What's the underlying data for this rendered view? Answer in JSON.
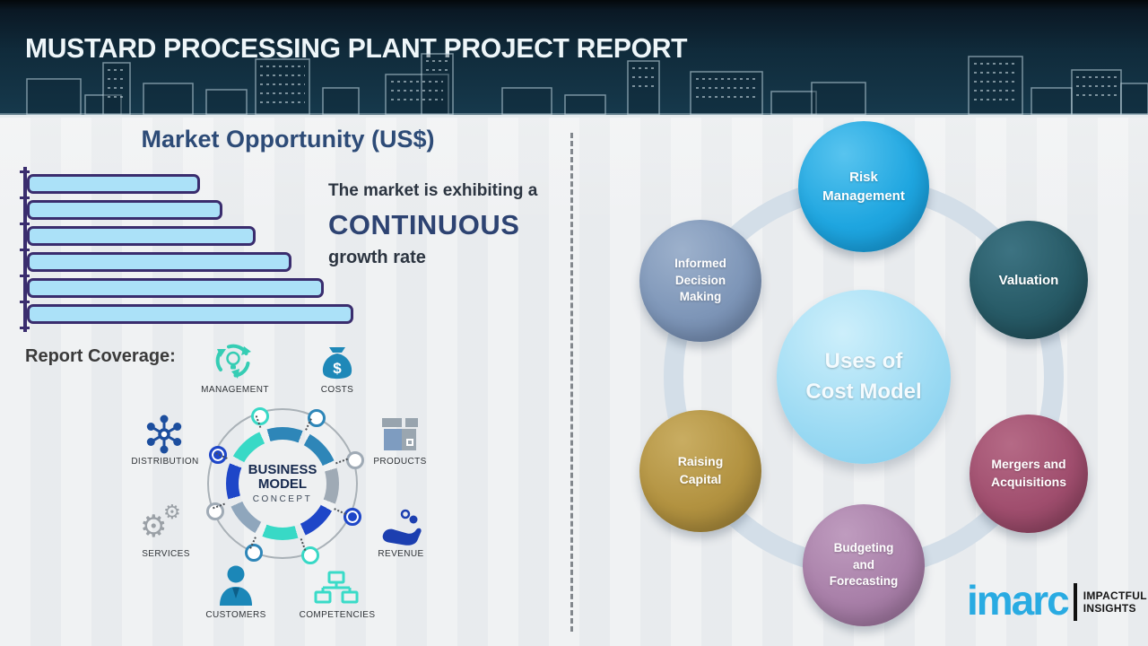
{
  "header": {
    "title": "MUSTARD PROCESSING PLANT PROJECT REPORT"
  },
  "market_opportunity": {
    "title": "Market Opportunity (US$)",
    "annotation": {
      "line1": "The market is exhibiting a",
      "emphasis": "CONTINUOUS",
      "line2": "growth rate"
    }
  },
  "chart_data": {
    "type": "bar",
    "orientation": "horizontal",
    "title": "Market Opportunity (US$)",
    "categories": [
      "",
      "",
      "",
      "",
      "",
      ""
    ],
    "values": [
      53,
      60,
      70,
      81,
      91,
      100
    ],
    "note": "six unlabeled bars increasing steadily; values are relative percents of longest bar",
    "bar_fill": "#ABE1F8",
    "bar_border": "#3A2D6E",
    "grid": false,
    "legend": false
  },
  "report_coverage": {
    "label": "Report Coverage:",
    "center": {
      "line1": "BUSINESS",
      "line2": "MODEL",
      "line3": "CONCEPT"
    },
    "items": [
      {
        "label": "MANAGEMENT",
        "icon": "management-cycle-bulb-icon",
        "color": "#35CDB4"
      },
      {
        "label": "COSTS",
        "icon": "money-bag-icon",
        "color": "#1E88B8"
      },
      {
        "label": "DISTRIBUTION",
        "icon": "network-hub-icon",
        "color": "#1C4E9E"
      },
      {
        "label": "PRODUCTS",
        "icon": "package-box-icon",
        "color": "#98A4AE"
      },
      {
        "label": "SERVICES",
        "icon": "gears-icon",
        "color": "#9aa0a6"
      },
      {
        "label": "REVENUE",
        "icon": "hand-coins-icon",
        "color": "#1C3FB0"
      },
      {
        "label": "CUSTOMERS",
        "icon": "person-icon",
        "color": "#1B87B8"
      },
      {
        "label": "COMPETENCIES",
        "icon": "org-chart-icon",
        "color": "#3ADBC8"
      }
    ],
    "ring_palette": [
      "#2E86B8",
      "#9FAAB5",
      "#1E46C8",
      "#38D9C6"
    ]
  },
  "uses_of_cost_model": {
    "center": {
      "line1": "Uses of",
      "line2": "Cost Model",
      "color": "#9BDAF3"
    },
    "ring_color": "#D3DEE8",
    "nodes": [
      {
        "label": "Risk Management",
        "lines": [
          "Risk",
          "Management",
          ""
        ],
        "color": "#1FA6E0"
      },
      {
        "label": "Informed Decision Making",
        "lines": [
          "Informed",
          "Decision",
          "Making"
        ],
        "color": "#7E96B8"
      },
      {
        "label": "Valuation",
        "lines": [
          "Valuation",
          "",
          ""
        ],
        "color": "#275A66"
      },
      {
        "label": "Raising Capital",
        "lines": [
          "Raising",
          "Capital",
          ""
        ],
        "color": "#B29240"
      },
      {
        "label": "Mergers and Acquisitions",
        "lines": [
          "Mergers and",
          "Acquisitions",
          ""
        ],
        "color": "#A04E6E"
      },
      {
        "label": "Budgeting and Forecasting",
        "lines": [
          "Budgeting",
          "and",
          "Forecasting"
        ],
        "color": "#A87FA8"
      }
    ]
  },
  "branding": {
    "logo_text": "imarc",
    "tagline_line1": "IMPACTFUL",
    "tagline_line2": "INSIGHTS",
    "logo_color": "#29ABE2"
  },
  "colors": {
    "header_bg": "#102B3B",
    "title_navy": "#2D4B77",
    "emphasis_navy": "#2D4372"
  }
}
